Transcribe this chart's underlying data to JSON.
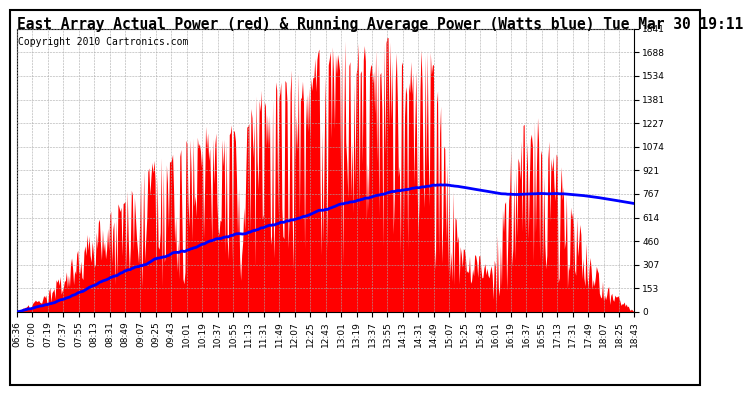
{
  "title": "East Array Actual Power (red) & Running Average Power (Watts blue) Tue Mar 30 19:11",
  "copyright": "Copyright 2010 Cartronics.com",
  "bg_color": "#ffffff",
  "plot_bg_color": "#ffffff",
  "grid_color": "#aaaaaa",
  "fill_color": "#ff0000",
  "line_color": "#0000ff",
  "ylim": [
    0.0,
    1841.2
  ],
  "yticks": [
    0.0,
    153.4,
    306.9,
    460.3,
    613.7,
    767.2,
    920.6,
    1074.0,
    1227.4,
    1380.9,
    1534.3,
    1687.7,
    1841.2
  ],
  "xtick_labels": [
    "06:36",
    "07:00",
    "07:19",
    "07:37",
    "07:55",
    "08:13",
    "08:31",
    "08:49",
    "09:07",
    "09:25",
    "09:43",
    "10:01",
    "10:19",
    "10:37",
    "10:55",
    "11:13",
    "11:31",
    "11:49",
    "12:07",
    "12:25",
    "12:43",
    "13:01",
    "13:19",
    "13:37",
    "13:55",
    "14:13",
    "14:31",
    "14:49",
    "15:07",
    "15:25",
    "15:43",
    "16:01",
    "16:19",
    "16:37",
    "16:55",
    "17:13",
    "17:31",
    "17:49",
    "18:07",
    "18:25",
    "18:43"
  ],
  "title_fontsize": 10.5,
  "copyright_fontsize": 7,
  "tick_fontsize": 6.5
}
